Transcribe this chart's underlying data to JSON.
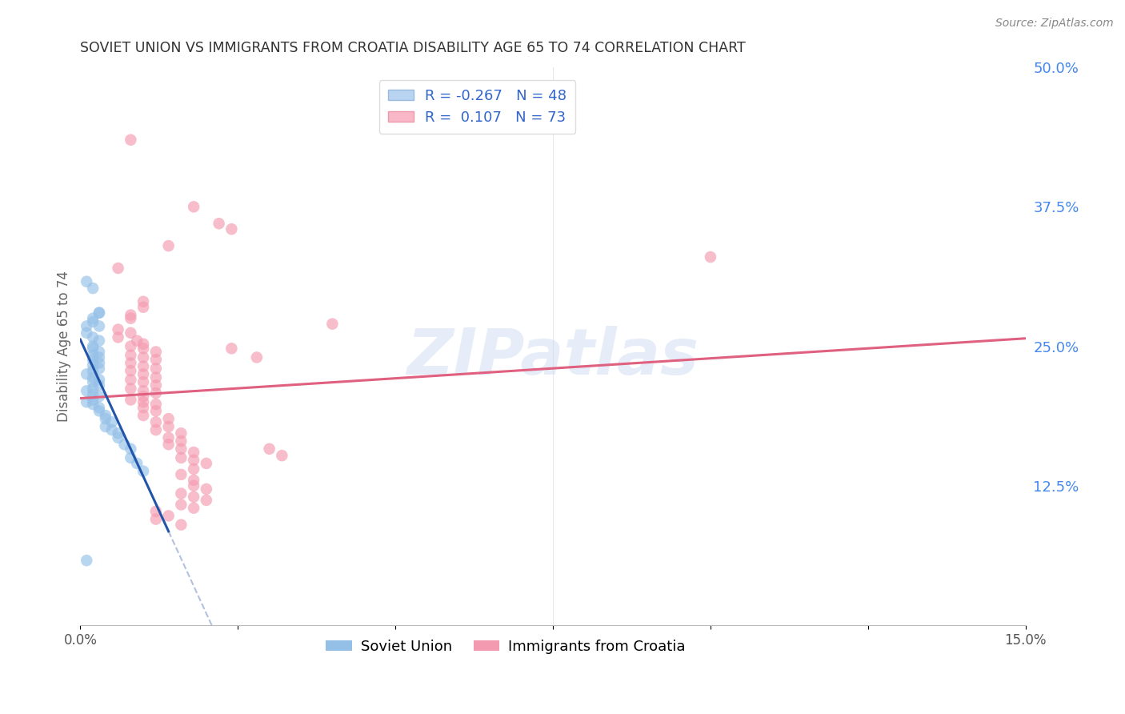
{
  "title": "SOVIET UNION VS IMMIGRANTS FROM CROATIA DISABILITY AGE 65 TO 74 CORRELATION CHART",
  "source": "Source: ZipAtlas.com",
  "ylabel": "Disability Age 65 to 74",
  "xlim": [
    0.0,
    0.15
  ],
  "ylim": [
    0.0,
    0.5
  ],
  "yticks_right": [
    0.5,
    0.375,
    0.25,
    0.125
  ],
  "ytick_labels_right": [
    "50.0%",
    "37.5%",
    "25.0%",
    "12.5%"
  ],
  "watermark": "ZIPatlas",
  "legend_r1": "R = -0.267",
  "legend_n1": "N = 48",
  "legend_r2": "R =  0.107",
  "legend_n2": "N = 73",
  "soviet_union_color": "#94c0e8",
  "croatia_color": "#f49ab0",
  "soviet_line_color": "#2255aa",
  "croatia_line_color": "#e06080",
  "dash_line_color": "#aabbdd",
  "grid_color": "#cccccc",
  "background_color": "#ffffff",
  "title_color": "#333333",
  "axis_label_color": "#666666",
  "right_tick_color": "#4488ee",
  "legend_box_color1": "#b8d4f0",
  "legend_box_color2": "#f8b8c8",
  "soviet_scatter": [
    [
      0.001,
      0.308
    ],
    [
      0.002,
      0.302
    ],
    [
      0.003,
      0.28
    ],
    [
      0.003,
      0.268
    ],
    [
      0.001,
      0.268
    ],
    [
      0.003,
      0.28
    ],
    [
      0.002,
      0.275
    ],
    [
      0.002,
      0.272
    ],
    [
      0.001,
      0.262
    ],
    [
      0.002,
      0.258
    ],
    [
      0.003,
      0.255
    ],
    [
      0.002,
      0.25
    ],
    [
      0.002,
      0.248
    ],
    [
      0.003,
      0.245
    ],
    [
      0.002,
      0.242
    ],
    [
      0.003,
      0.24
    ],
    [
      0.002,
      0.238
    ],
    [
      0.003,
      0.235
    ],
    [
      0.002,
      0.233
    ],
    [
      0.003,
      0.23
    ],
    [
      0.002,
      0.228
    ],
    [
      0.001,
      0.225
    ],
    [
      0.002,
      0.222
    ],
    [
      0.003,
      0.22
    ],
    [
      0.002,
      0.218
    ],
    [
      0.003,
      0.215
    ],
    [
      0.002,
      0.212
    ],
    [
      0.001,
      0.21
    ],
    [
      0.002,
      0.207
    ],
    [
      0.003,
      0.205
    ],
    [
      0.002,
      0.202
    ],
    [
      0.001,
      0.2
    ],
    [
      0.002,
      0.198
    ],
    [
      0.003,
      0.195
    ],
    [
      0.003,
      0.192
    ],
    [
      0.004,
      0.188
    ],
    [
      0.004,
      0.185
    ],
    [
      0.005,
      0.182
    ],
    [
      0.004,
      0.178
    ],
    [
      0.005,
      0.175
    ],
    [
      0.006,
      0.172
    ],
    [
      0.006,
      0.168
    ],
    [
      0.007,
      0.162
    ],
    [
      0.008,
      0.158
    ],
    [
      0.008,
      0.15
    ],
    [
      0.009,
      0.145
    ],
    [
      0.01,
      0.138
    ],
    [
      0.001,
      0.058
    ]
  ],
  "croatia_scatter": [
    [
      0.008,
      0.435
    ],
    [
      0.018,
      0.375
    ],
    [
      0.022,
      0.36
    ],
    [
      0.024,
      0.355
    ],
    [
      0.014,
      0.34
    ],
    [
      0.006,
      0.32
    ],
    [
      0.01,
      0.285
    ],
    [
      0.008,
      0.275
    ],
    [
      0.04,
      0.27
    ],
    [
      0.006,
      0.265
    ],
    [
      0.008,
      0.262
    ],
    [
      0.006,
      0.258
    ],
    [
      0.009,
      0.255
    ],
    [
      0.01,
      0.252
    ],
    [
      0.008,
      0.25
    ],
    [
      0.01,
      0.248
    ],
    [
      0.012,
      0.245
    ],
    [
      0.008,
      0.242
    ],
    [
      0.01,
      0.24
    ],
    [
      0.012,
      0.238
    ],
    [
      0.008,
      0.235
    ],
    [
      0.01,
      0.232
    ],
    [
      0.012,
      0.23
    ],
    [
      0.008,
      0.228
    ],
    [
      0.01,
      0.225
    ],
    [
      0.012,
      0.222
    ],
    [
      0.008,
      0.22
    ],
    [
      0.01,
      0.218
    ],
    [
      0.012,
      0.215
    ],
    [
      0.008,
      0.212
    ],
    [
      0.01,
      0.21
    ],
    [
      0.012,
      0.208
    ],
    [
      0.01,
      0.205
    ],
    [
      0.008,
      0.202
    ],
    [
      0.01,
      0.2
    ],
    [
      0.012,
      0.198
    ],
    [
      0.01,
      0.195
    ],
    [
      0.012,
      0.192
    ],
    [
      0.01,
      0.188
    ],
    [
      0.014,
      0.185
    ],
    [
      0.012,
      0.182
    ],
    [
      0.014,
      0.178
    ],
    [
      0.012,
      0.175
    ],
    [
      0.016,
      0.172
    ],
    [
      0.014,
      0.168
    ],
    [
      0.016,
      0.165
    ],
    [
      0.014,
      0.162
    ],
    [
      0.016,
      0.158
    ],
    [
      0.018,
      0.155
    ],
    [
      0.016,
      0.15
    ],
    [
      0.018,
      0.148
    ],
    [
      0.02,
      0.145
    ],
    [
      0.018,
      0.14
    ],
    [
      0.016,
      0.135
    ],
    [
      0.018,
      0.13
    ],
    [
      0.018,
      0.125
    ],
    [
      0.02,
      0.122
    ],
    [
      0.016,
      0.118
    ],
    [
      0.018,
      0.115
    ],
    [
      0.02,
      0.112
    ],
    [
      0.016,
      0.108
    ],
    [
      0.018,
      0.105
    ],
    [
      0.012,
      0.102
    ],
    [
      0.014,
      0.098
    ],
    [
      0.012,
      0.095
    ],
    [
      0.016,
      0.09
    ],
    [
      0.1,
      0.33
    ],
    [
      0.01,
      0.29
    ],
    [
      0.008,
      0.278
    ],
    [
      0.028,
      0.24
    ],
    [
      0.024,
      0.248
    ],
    [
      0.03,
      0.158
    ],
    [
      0.032,
      0.152
    ]
  ]
}
